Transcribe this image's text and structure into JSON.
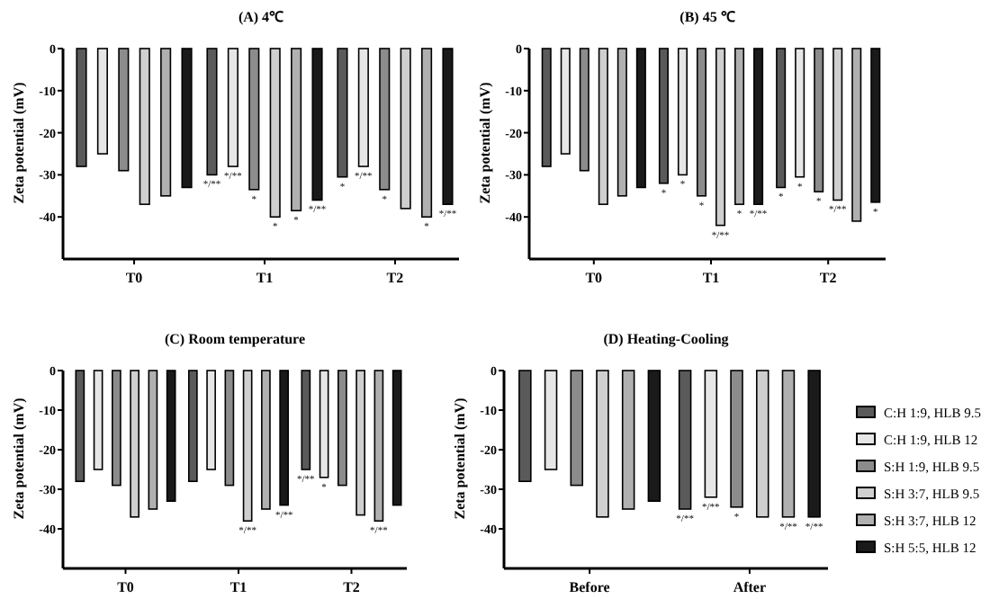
{
  "chart_data": [
    {
      "type": "bar",
      "title": "(A) 4℃",
      "ylabel": "Zeta potential (mV)",
      "categories": [
        "T0",
        "T1",
        "T2"
      ],
      "ylim": [
        -50,
        0
      ],
      "yticks": [
        0,
        -10,
        -20,
        -30,
        -40
      ],
      "grid": false,
      "legend": false,
      "series": [
        {
          "color": "#5a5a5a",
          "values": [
            -28,
            -30,
            -30.5
          ],
          "value_labels": [
            null,
            "*/**",
            "*"
          ]
        },
        {
          "color": "#e6e6e6",
          "values": [
            -25,
            -28,
            -28
          ],
          "value_labels": [
            null,
            "*/**",
            "*/**"
          ]
        },
        {
          "color": "#8c8c8c",
          "values": [
            -29,
            -33.5,
            -33.5
          ],
          "value_labels": [
            null,
            "*",
            "*"
          ]
        },
        {
          "color": "#cfcfcf",
          "values": [
            -37,
            -40,
            -38
          ],
          "value_labels": [
            null,
            "*",
            null
          ]
        },
        {
          "color": "#b0b0b0",
          "values": [
            -35,
            -38.5,
            -40
          ],
          "value_labels": [
            null,
            "*",
            "*"
          ]
        },
        {
          "color": "#1a1a1a",
          "values": [
            -33,
            -36,
            -37
          ],
          "value_labels": [
            null,
            "*/**",
            "*/**"
          ]
        }
      ]
    },
    {
      "type": "bar",
      "title": "(B) 45 ℃",
      "ylabel": "Zeta potential (mV)",
      "categories": [
        "T0",
        "T1",
        "T2"
      ],
      "ylim": [
        -50,
        0
      ],
      "yticks": [
        0,
        -10,
        -20,
        -30,
        -40
      ],
      "grid": false,
      "legend": false,
      "series": [
        {
          "color": "#5a5a5a",
          "values": [
            -28,
            -32,
            -33
          ],
          "value_labels": [
            null,
            "*",
            "*"
          ]
        },
        {
          "color": "#e6e6e6",
          "values": [
            -25,
            -30,
            -30.5
          ],
          "value_labels": [
            null,
            "*",
            "*"
          ]
        },
        {
          "color": "#8c8c8c",
          "values": [
            -29,
            -35,
            -34
          ],
          "value_labels": [
            null,
            "*",
            "*"
          ]
        },
        {
          "color": "#cfcfcf",
          "values": [
            -37,
            -42,
            -36
          ],
          "value_labels": [
            null,
            "*/**",
            "*/**"
          ]
        },
        {
          "color": "#b0b0b0",
          "values": [
            -35,
            -37,
            -41
          ],
          "value_labels": [
            null,
            "*",
            null
          ]
        },
        {
          "color": "#1a1a1a",
          "values": [
            -33,
            -37,
            -36.5
          ],
          "value_labels": [
            null,
            "*/**",
            "*"
          ]
        }
      ]
    },
    {
      "type": "bar",
      "title": "(C) Room temperature",
      "ylabel": "Zeta potential (mV)",
      "categories": [
        "T0",
        "T1",
        "T2"
      ],
      "ylim": [
        -50,
        0
      ],
      "yticks": [
        0,
        -10,
        -20,
        -30,
        -40
      ],
      "grid": false,
      "legend": false,
      "series": [
        {
          "color": "#5a5a5a",
          "values": [
            -28,
            -28,
            -25
          ],
          "value_labels": [
            null,
            null,
            "*/**"
          ]
        },
        {
          "color": "#e6e6e6",
          "values": [
            -25,
            -25,
            -27
          ],
          "value_labels": [
            null,
            null,
            "*"
          ]
        },
        {
          "color": "#8c8c8c",
          "values": [
            -29,
            -29,
            -29
          ],
          "value_labels": [
            null,
            null,
            null
          ]
        },
        {
          "color": "#cfcfcf",
          "values": [
            -37,
            -38,
            -36.5
          ],
          "value_labels": [
            null,
            "*/**",
            null
          ]
        },
        {
          "color": "#b0b0b0",
          "values": [
            -35,
            -35,
            -38
          ],
          "value_labels": [
            null,
            null,
            "*/**"
          ]
        },
        {
          "color": "#1a1a1a",
          "values": [
            -33,
            -34,
            -34
          ],
          "value_labels": [
            null,
            "*/**",
            null
          ]
        }
      ]
    },
    {
      "type": "bar",
      "title": "(D) Heating-Cooling",
      "ylabel": "Zeta potential (mV)",
      "categories": [
        "Before",
        "After"
      ],
      "ylim": [
        -50,
        0
      ],
      "yticks": [
        0,
        -10,
        -20,
        -30,
        -40
      ],
      "grid": false,
      "legend": "right",
      "series": [
        {
          "name": "C:H 1:9, HLB 9.5",
          "color": "#5a5a5a",
          "values": [
            -28,
            -35
          ],
          "value_labels": [
            null,
            "*/**"
          ]
        },
        {
          "name": "C:H 1:9, HLB 12",
          "color": "#e6e6e6",
          "values": [
            -25,
            -32
          ],
          "value_labels": [
            null,
            "*/**"
          ]
        },
        {
          "name": "S:H 1:9, HLB 9.5",
          "color": "#8c8c8c",
          "values": [
            -29,
            -34.5
          ],
          "value_labels": [
            null,
            "*"
          ]
        },
        {
          "name": "S:H 3:7, HLB 9.5",
          "color": "#cfcfcf",
          "values": [
            -37,
            -37
          ],
          "value_labels": [
            null,
            null
          ]
        },
        {
          "name": "S:H 3:7, HLB 12",
          "color": "#b0b0b0",
          "values": [
            -35,
            -37
          ],
          "value_labels": [
            null,
            "*/**"
          ]
        },
        {
          "name": "S:H 5:5, HLB 12",
          "color": "#1a1a1a",
          "values": [
            -33,
            -37
          ],
          "value_labels": [
            null,
            "*/**"
          ]
        }
      ]
    }
  ]
}
